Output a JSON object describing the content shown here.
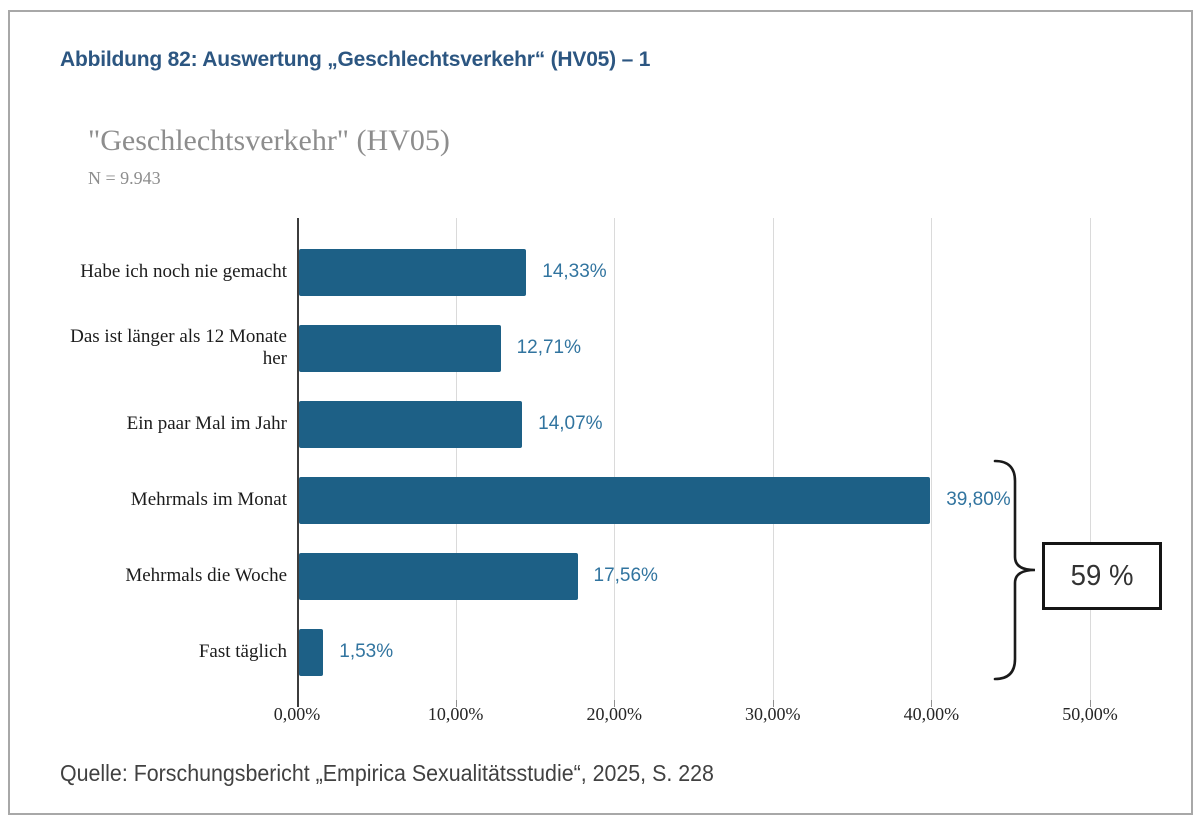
{
  "figure": {
    "title": "Abbildung 82: Auswertung „Geschlechtsverkehr“ (HV05) – 1",
    "source": "Quelle: Forschungsbericht „Empirica Sexualitätsstudie“, 2025, S. 228"
  },
  "chart_data": {
    "type": "bar",
    "orientation": "horizontal",
    "title": "\"Geschlechtsverkehr\" (HV05)",
    "subtitle": "N = 9.943",
    "categories": [
      "Habe ich noch nie gemacht",
      "Das ist länger als 12 Monate her",
      "Ein paar Mal im Jahr",
      "Mehrmals im Monat",
      "Mehrmals die Woche",
      "Fast täglich"
    ],
    "values": [
      14.33,
      12.71,
      14.07,
      39.8,
      17.56,
      1.53
    ],
    "value_labels": [
      "14,33%",
      "12,71%",
      "14,07%",
      "39,80%",
      "17,56%",
      "1,53%"
    ],
    "x_ticks": [
      "0,00%",
      "10,00%",
      "20,00%",
      "30,00%",
      "40,00%",
      "50,00%"
    ],
    "x_tick_values": [
      0,
      10,
      20,
      30,
      40,
      50
    ],
    "xlim": [
      0,
      50
    ],
    "grid": true,
    "annotation": {
      "label": "59 %",
      "grouped_categories": [
        "Mehrmals im Monat",
        "Mehrmals die Woche",
        "Fast täglich"
      ],
      "grouped_sum_percent": 58.89
    },
    "colors": {
      "bar": "#1d6086",
      "value_label": "#31749f",
      "figure_title": "#2c5681",
      "chart_title": "#8d8d8d",
      "gridline": "#dadada",
      "axis_line": "#3c3c3c",
      "frame_border": "#a8a8a8"
    }
  }
}
